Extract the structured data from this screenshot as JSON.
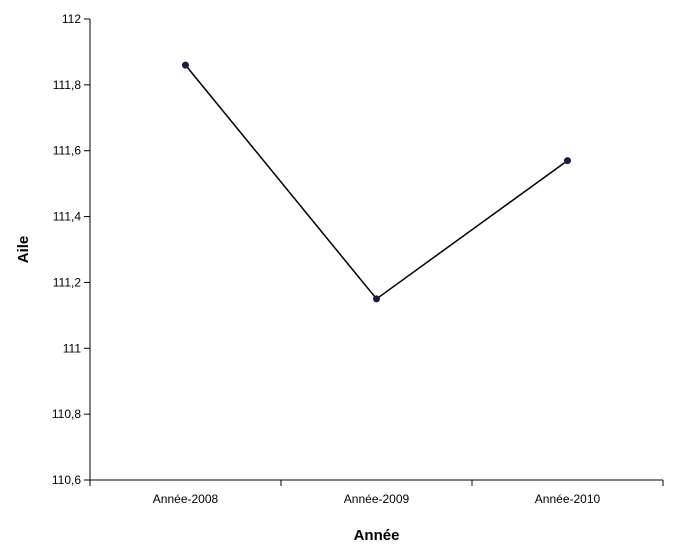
{
  "chart_data": {
    "type": "line",
    "title": "",
    "xlabel": "Année",
    "ylabel": "Aile",
    "categories": [
      "Année-2008",
      "Année-2009",
      "Année-2010"
    ],
    "series": [
      {
        "values": [
          111.86,
          111.15,
          111.57
        ],
        "color": "#000000",
        "marker_color": "#1a1a4a"
      }
    ],
    "ylim": [
      110.6,
      112.0
    ],
    "yticks": [
      110.6,
      110.8,
      111.0,
      111.2,
      111.4,
      111.6,
      111.8,
      112.0
    ],
    "ytick_labels": [
      "110,6",
      "110,8",
      "111",
      "111,2",
      "111,4",
      "111,6",
      "111,8",
      "112"
    ],
    "grid": false,
    "legend": "none"
  }
}
